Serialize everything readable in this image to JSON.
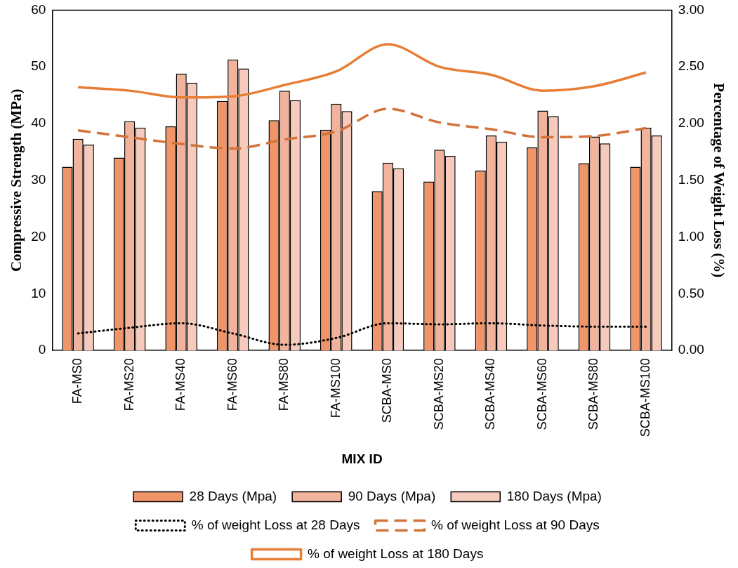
{
  "chart_data": {
    "type": "bar",
    "xlabel": "MIX ID",
    "ylabel": "Compressive Strength (MPa)",
    "y2label": "Percentage of Weight Loss (%)",
    "categories": [
      "FA-MS0",
      "FA-MS20",
      "FA-MS40",
      "FA-MS60",
      "FA-MS80",
      "FA-MS100",
      "SCBA-MS0",
      "SCBA-MS20",
      "SCBA-MS40",
      "SCBA-MS60",
      "SCBA-MS80",
      "SCBA-MS100"
    ],
    "series": [
      {
        "name": "28 Days (Mpa)",
        "color": "#f0956a",
        "values": [
          32.4,
          34.0,
          39.5,
          44.0,
          40.6,
          38.9,
          28.1,
          29.8,
          31.7,
          35.8,
          33.0,
          32.4
        ]
      },
      {
        "name": "90 Days (Mpa)",
        "color": "#f2b39c",
        "values": [
          37.3,
          40.4,
          48.8,
          51.3,
          45.8,
          43.5,
          33.1,
          35.4,
          37.9,
          42.3,
          37.7,
          39.3
        ]
      },
      {
        "name": "180 Days (Mpa)",
        "color": "#f6cbbd",
        "values": [
          36.3,
          39.3,
          47.2,
          49.7,
          44.1,
          42.2,
          32.1,
          34.3,
          36.8,
          41.3,
          36.5,
          37.9
        ]
      },
      {
        "name": "% of weight Loss at 28 Days",
        "type": "line",
        "axis": "y2",
        "line_style": "dotted",
        "color": "#000000",
        "values": [
          0.15,
          0.2,
          0.24,
          0.15,
          0.05,
          0.11,
          0.24,
          0.23,
          0.24,
          0.22,
          0.21,
          0.21
        ]
      },
      {
        "name": "% of weight Loss at 90 Days",
        "type": "line",
        "axis": "y2",
        "line_style": "dashed",
        "color": "#d2733a",
        "values": [
          1.94,
          1.88,
          1.82,
          1.78,
          1.86,
          1.93,
          2.13,
          2.01,
          1.95,
          1.88,
          1.89,
          1.96
        ]
      },
      {
        "name": "% of weight Loss at 180 Days",
        "type": "line",
        "axis": "y2",
        "line_style": "solid",
        "color": "#e77e35",
        "values": [
          2.32,
          2.29,
          2.23,
          2.24,
          2.34,
          2.46,
          2.7,
          2.5,
          2.43,
          2.29,
          2.33,
          2.45
        ]
      }
    ],
    "ylim": [
      0,
      60
    ],
    "yticks": [
      0,
      10,
      20,
      30,
      40,
      50,
      60
    ],
    "y2lim": [
      0,
      3
    ],
    "y2ticks": [
      {
        "value": 0,
        "label": "0.00"
      },
      {
        "value": 0.5,
        "label": "0.50"
      },
      {
        "value": 1,
        "label": "1.00"
      },
      {
        "value": 1.5,
        "label": "1.50"
      },
      {
        "value": 2,
        "label": "2.00"
      },
      {
        "value": 2.5,
        "label": "2.50"
      },
      {
        "value": 3,
        "label": "3.00"
      }
    ],
    "grid": false,
    "legend": "bottom",
    "marker": "none"
  }
}
